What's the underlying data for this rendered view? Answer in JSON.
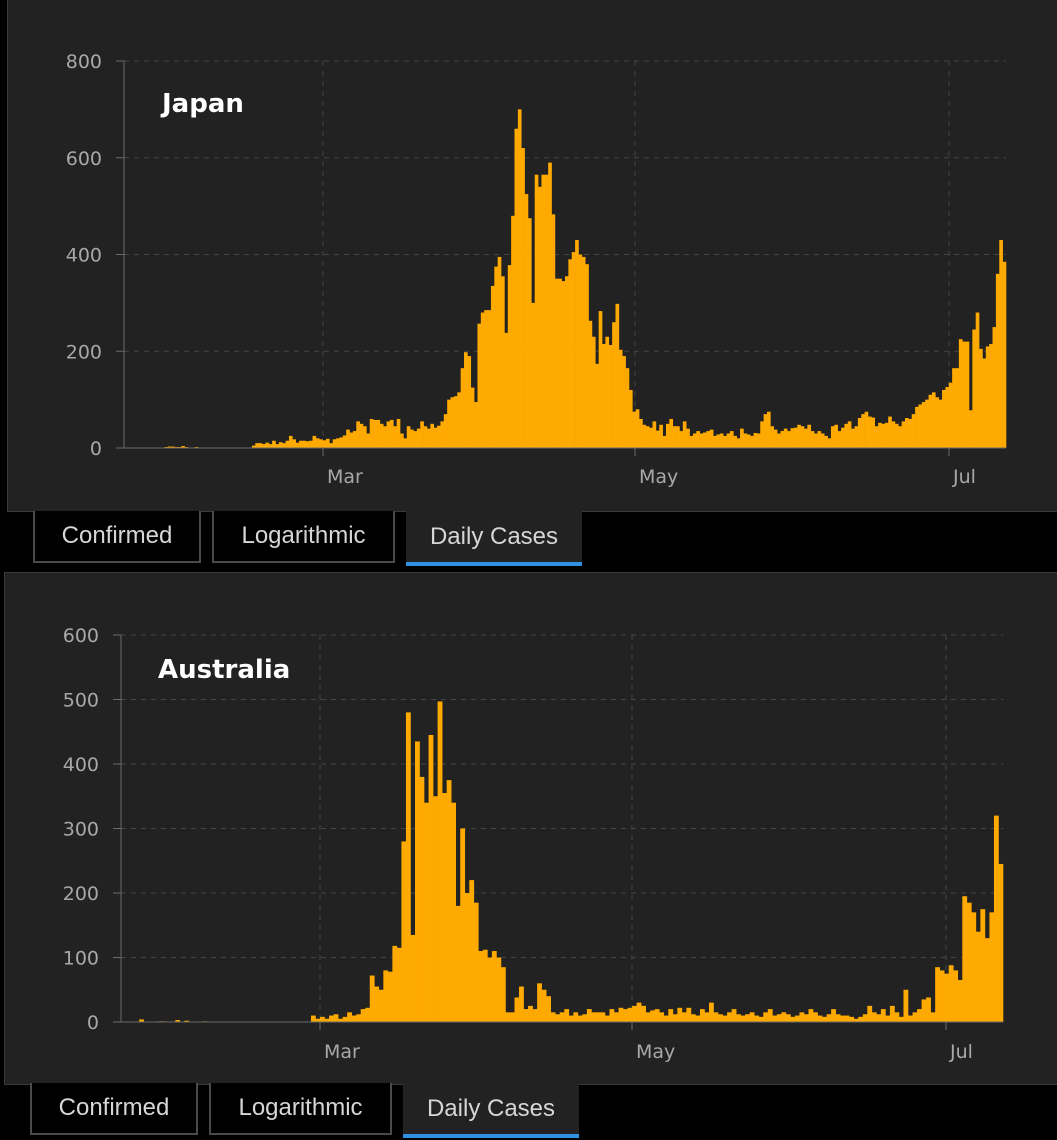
{
  "panels": [
    {
      "tabs": [
        {
          "label": "Confirmed",
          "active": false
        },
        {
          "label": "Logarithmic",
          "active": false
        },
        {
          "label": "Daily Cases",
          "active": true
        }
      ]
    },
    {
      "tabs": [
        {
          "label": "Confirmed",
          "active": false
        },
        {
          "label": "Logarithmic",
          "active": false
        },
        {
          "label": "Daily Cases",
          "active": true
        }
      ]
    }
  ],
  "colors": {
    "bar": "#FFAA00",
    "background": "#222222",
    "grid": "#444444",
    "axis": "#6a6a6a",
    "active_tab": "#2f8fe0"
  },
  "chart_data": [
    {
      "type": "bar",
      "annotation": "Japan",
      "title": "",
      "xlabel": "",
      "ylabel": "",
      "ylim": [
        0,
        800
      ],
      "yticks": [
        "0",
        "200",
        "400",
        "600",
        "800"
      ],
      "xticks": [
        "Mar",
        "May",
        "Jul"
      ],
      "grid": true,
      "first_date": "2020-01-22",
      "values": [
        0,
        0,
        0,
        0,
        0,
        1,
        1,
        1,
        1,
        1,
        1,
        1,
        2,
        3,
        3,
        2,
        2,
        4,
        2,
        0,
        0,
        2,
        1,
        1,
        1,
        1,
        1,
        1,
        0,
        0,
        1,
        1,
        1,
        0,
        0,
        1,
        1,
        1,
        5,
        10,
        10,
        8,
        11,
        8,
        15,
        8,
        12,
        10,
        15,
        25,
        18,
        11,
        15,
        15,
        14,
        15,
        25,
        20,
        18,
        16,
        19,
        10,
        18,
        20,
        22,
        26,
        38,
        32,
        35,
        55,
        50,
        45,
        30,
        60,
        58,
        58,
        50,
        45,
        55,
        58,
        45,
        60,
        30,
        20,
        45,
        38,
        35,
        40,
        55,
        45,
        40,
        50,
        42,
        46,
        55,
        70,
        100,
        105,
        107,
        115,
        165,
        198,
        190,
        125,
        95,
        257,
        280,
        285,
        285,
        335,
        375,
        395,
        355,
        238,
        378,
        480,
        660,
        700,
        620,
        525,
        475,
        300,
        565,
        540,
        565,
        565,
        590,
        483,
        350,
        350,
        345,
        355,
        390,
        405,
        430,
        400,
        395,
        380,
        263,
        230,
        174,
        283,
        215,
        230,
        213,
        260,
        298,
        203,
        190,
        165,
        120,
        75,
        80,
        60,
        48,
        45,
        42,
        55,
        36,
        48,
        25,
        50,
        60,
        45,
        45,
        35,
        55,
        40,
        25,
        30,
        35,
        30,
        32,
        35,
        38,
        25,
        28,
        30,
        25,
        30,
        35,
        25,
        20,
        40,
        30,
        28,
        25,
        31,
        30,
        55,
        70,
        75,
        45,
        38,
        30,
        35,
        40,
        35,
        41,
        42,
        48,
        45,
        40,
        48,
        35,
        30,
        35,
        30,
        25,
        20,
        45,
        48,
        35,
        42,
        50,
        55,
        40,
        45,
        62,
        70,
        75,
        65,
        63,
        45,
        52,
        50,
        52,
        65,
        55,
        50,
        45,
        55,
        62,
        60,
        70,
        85,
        90,
        95,
        100,
        110,
        115,
        105,
        100,
        120,
        126,
        135,
        165,
        165,
        225,
        220,
        220,
        78,
        245,
        280,
        205,
        185,
        210,
        215,
        250,
        360,
        430,
        385
      ]
    },
    {
      "type": "bar",
      "annotation": "Australia",
      "title": "",
      "xlabel": "",
      "ylabel": "",
      "ylim": [
        0,
        600
      ],
      "yticks": [
        "0",
        "100",
        "200",
        "300",
        "400",
        "500",
        "600"
      ],
      "xticks": [
        "Mar",
        "May",
        "Jul"
      ],
      "grid": true,
      "first_date": "2020-01-22",
      "values": [
        0,
        0,
        0,
        0,
        4,
        0,
        0,
        0,
        0,
        0,
        0,
        0,
        0,
        0,
        0,
        0,
        0,
        0,
        0,
        0,
        0,
        0,
        0,
        0,
        0,
        0,
        0,
        0,
        0,
        0,
        0,
        0,
        0,
        0,
        0,
        0,
        0,
        0,
        0,
        0,
        0,
        0,
        0,
        0,
        0,
        0,
        0,
        0,
        0,
        0,
        0,
        0,
        0,
        0,
        0,
        0,
        0,
        0,
        0,
        0,
        0,
        0,
        0,
        0,
        0,
        0,
        0,
        0,
        0,
        0,
        0,
        0,
        0,
        0,
        0,
        0,
        0,
        0,
        0,
        0,
        0,
        0,
        0,
        0,
        0,
        0,
        0,
        0,
        0,
        0,
        0,
        0,
        0,
        0,
        0,
        0,
        0,
        0,
        0,
        0,
        0,
        0,
        0,
        0,
        0,
        0,
        0,
        0,
        0,
        0,
        0,
        0,
        0,
        0,
        0,
        0,
        0,
        0,
        0,
        0,
        0,
        0,
        0,
        0,
        0,
        0,
        0,
        0,
        0,
        0,
        0,
        0,
        0,
        0,
        0,
        0,
        0,
        0,
        0,
        0,
        0,
        0,
        0,
        0,
        0,
        0,
        0,
        0,
        0,
        0,
        0,
        0,
        0,
        0,
        0,
        0,
        0,
        0,
        0,
        0,
        0,
        0,
        0,
        0,
        0,
        0,
        0,
        0,
        0,
        0,
        0,
        0,
        0,
        0,
        0,
        0,
        0,
        0,
        0,
        0,
        0,
        0,
        0,
        0,
        0,
        0,
        0,
        0,
        0,
        0,
        0,
        0,
        0,
        0,
        0,
        0,
        0,
        0,
        0,
        0,
        0,
        0,
        0,
        0,
        0,
        0,
        0,
        0,
        0,
        0,
        0,
        0,
        0,
        0,
        0,
        0,
        0,
        0,
        0,
        0,
        0,
        0,
        0,
        0,
        0,
        0,
        0,
        0,
        0,
        0,
        0,
        0,
        0,
        0,
        0,
        0,
        0,
        0,
        0,
        0,
        0,
        0,
        0,
        0,
        0,
        0,
        0,
        0,
        0,
        0,
        0,
        0,
        0,
        0,
        0,
        0,
        0,
        0,
        0,
        0,
        0,
        0,
        0,
        0,
        0,
        0,
        0,
        0,
        0,
        0
      ]
    }
  ]
}
